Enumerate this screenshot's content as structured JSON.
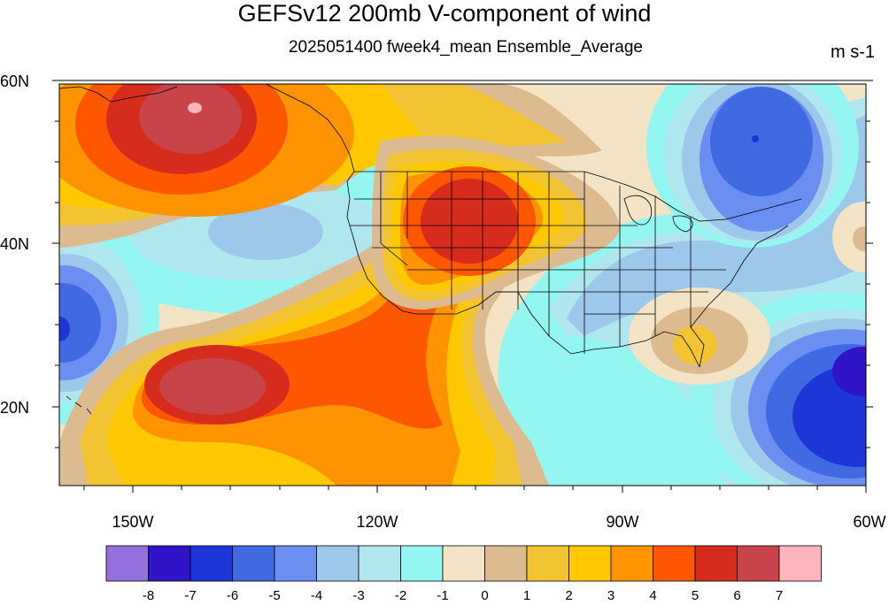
{
  "title": "GEFSv12 200mb V-component of wind",
  "subtitle": "2025051400 fweek4_mean Ensemble_Average",
  "units": "m s-1",
  "lat_labels": [
    "60N",
    "40N",
    "20N"
  ],
  "lon_labels": [
    "150W",
    "120W",
    "90W",
    "60W"
  ],
  "colorbar": {
    "colors": [
      "#9370db",
      "#2f14c8",
      "#1c36d8",
      "#4169e1",
      "#6a8ff0",
      "#9ec8ea",
      "#b0e6ee",
      "#94f6f0",
      "#f2e4c4",
      "#ddbb90",
      "#f2c432",
      "#ffc800",
      "#ff9300",
      "#ff5700",
      "#d52c1e",
      "#c84448",
      "#ffb5bb"
    ],
    "labels": [
      "-8",
      "-7",
      "-6",
      "-5",
      "-4",
      "-3",
      "-2",
      "-1",
      "0",
      "1",
      "2",
      "3",
      "4",
      "5",
      "6",
      "7"
    ]
  }
}
